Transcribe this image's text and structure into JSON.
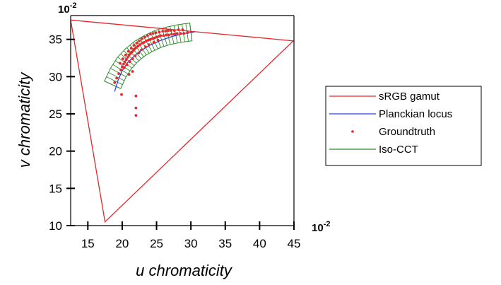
{
  "chart_data": {
    "type": "scatter",
    "xlabel": "u chromaticity",
    "ylabel": "v chromaticity",
    "x_exponent": "10",
    "x_exponent_power": "-2",
    "y_exponent": "10",
    "y_exponent_power": "-2",
    "xlim": [
      12.5,
      45
    ],
    "ylim": [
      10,
      38.2
    ],
    "xticks": [
      15,
      20,
      25,
      30,
      35,
      40,
      45
    ],
    "yticks": [
      10,
      15,
      20,
      25,
      30,
      35
    ],
    "xtick_labels": [
      "15",
      "20",
      "25",
      "30",
      "35",
      "40",
      "45"
    ],
    "ytick_labels": [
      "10",
      "15",
      "20",
      "25",
      "30",
      "35"
    ],
    "grid": false,
    "legend_position": "right",
    "series": [
      {
        "name": "sRGB gamut",
        "kind": "line",
        "color": "#e8262a",
        "x": [
          12.5,
          44.9,
          17.5,
          12.5
        ],
        "y": [
          37.6,
          34.8,
          10.5,
          37.6
        ]
      },
      {
        "name": "Planckian locus",
        "kind": "line",
        "color": "#2f40d8",
        "x": [
          18.9,
          19.4,
          20.0,
          20.8,
          21.8,
          22.9,
          24.2,
          25.7,
          27.3,
          29.0,
          30.5
        ],
        "y": [
          28.0,
          29.5,
          30.8,
          31.9,
          32.8,
          33.6,
          34.3,
          34.9,
          35.4,
          35.8,
          36.0
        ]
      },
      {
        "name": "Groundtruth",
        "kind": "scatter",
        "color": "#e8262a",
        "x": [
          18.9,
          19.2,
          19.5,
          19.8,
          20.0,
          20.2,
          20.4,
          20.6,
          20.8,
          21.0,
          21.2,
          21.4,
          21.6,
          21.8,
          22.0,
          22.3,
          22.6,
          22.9,
          23.2,
          23.5,
          23.8,
          24.1,
          24.4,
          24.7,
          25.0,
          25.3,
          25.6,
          26.0,
          26.4,
          26.8,
          27.2,
          27.6,
          28.0,
          28.5,
          29.0,
          29.5,
          19.7,
          20.1,
          20.5,
          20.9,
          21.3,
          21.7,
          22.1,
          22.5,
          22.9,
          23.3,
          23.7,
          24.1,
          24.5,
          24.9,
          25.4,
          25.9,
          26.3,
          26.7,
          27.1,
          27.6,
          28.2,
          28.8,
          20.3,
          20.7,
          21.1,
          21.5,
          21.9,
          22.4,
          22.8,
          23.4,
          23.9,
          24.6,
          25.2,
          19.9,
          21.0,
          21.5,
          22.0,
          22.0,
          22.0
        ],
        "y": [
          29.2,
          29.8,
          30.4,
          30.9,
          31.3,
          31.7,
          32.0,
          32.3,
          32.6,
          32.9,
          33.1,
          33.3,
          33.5,
          33.7,
          33.9,
          34.1,
          34.3,
          34.5,
          34.6,
          34.8,
          34.9,
          35.0,
          35.1,
          35.2,
          35.3,
          35.4,
          35.5,
          35.5,
          35.6,
          35.6,
          35.7,
          35.7,
          35.8,
          35.8,
          35.8,
          35.9,
          31.8,
          32.4,
          32.9,
          33.4,
          33.8,
          34.2,
          34.5,
          34.8,
          35.1,
          35.3,
          35.5,
          35.7,
          35.8,
          35.9,
          36.0,
          36.1,
          36.1,
          36.2,
          36.2,
          36.2,
          36.3,
          36.3,
          31.2,
          31.6,
          32.0,
          32.4,
          32.8,
          33.2,
          33.6,
          34.0,
          34.3,
          34.6,
          34.9,
          27.6,
          30.3,
          30.7,
          27.4,
          25.8,
          24.8
        ]
      },
      {
        "name": "Iso-CCT",
        "kind": "band",
        "color": "#2e8b2e",
        "center_x": [
          18.6,
          19.4,
          20.3,
          21.4,
          22.6,
          23.9,
          25.3,
          26.8,
          28.4,
          30.0
        ],
        "center_y": [
          28.9,
          30.5,
          31.8,
          32.9,
          33.8,
          34.5,
          35.1,
          35.5,
          35.8,
          36.0
        ],
        "half_width": 1.2
      }
    ]
  }
}
